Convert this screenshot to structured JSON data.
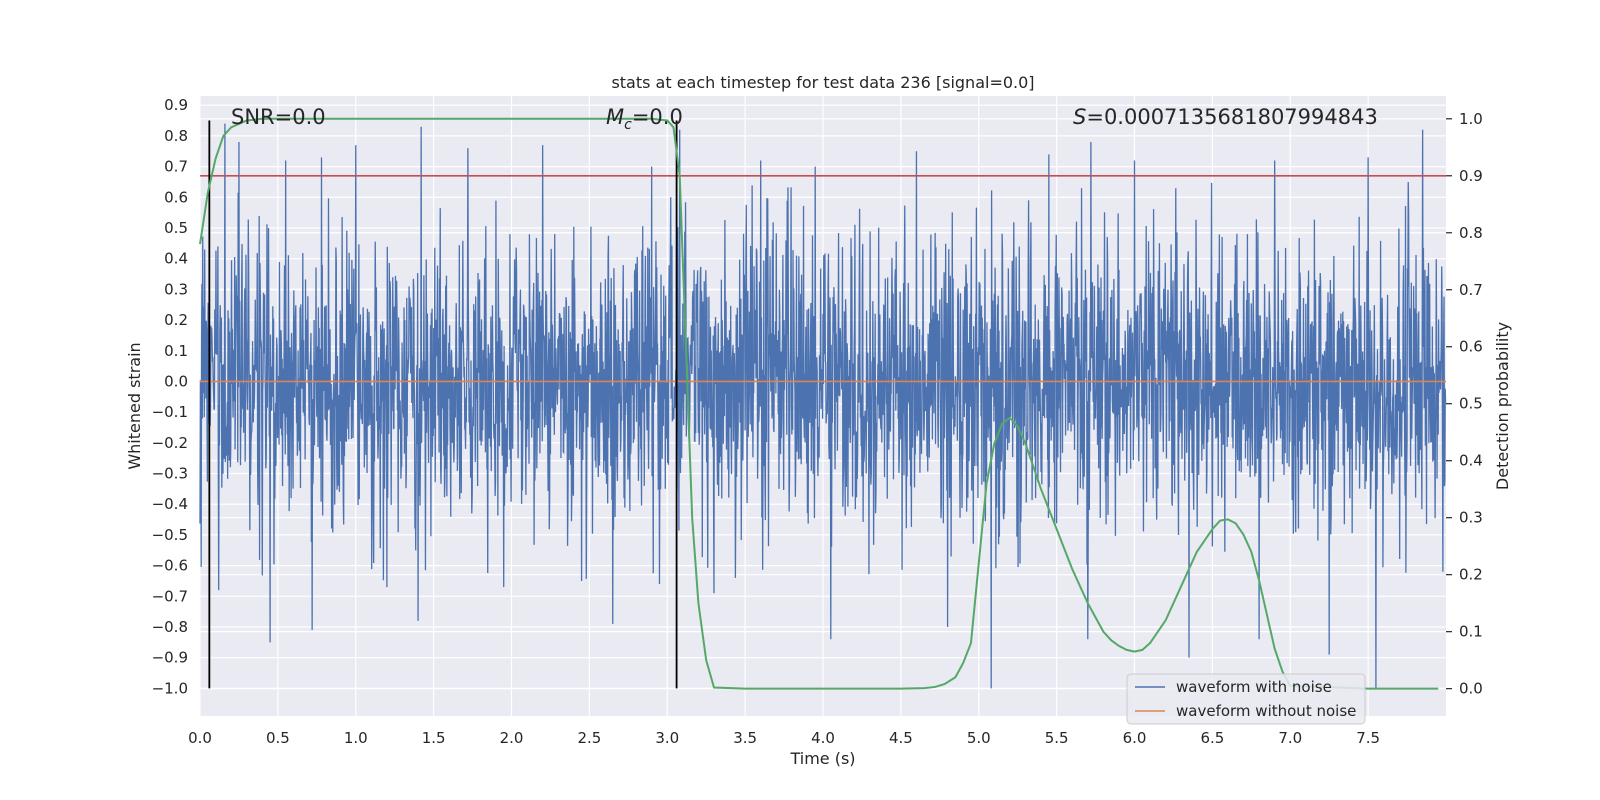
{
  "chart_data": {
    "type": "line",
    "title": "stats at each timestep for test data 236 [signal=0.0]",
    "xlabel": "Time (s)",
    "ylabel": "Whitened strain",
    "y2label": "Detection probability",
    "xlim": [
      0.0,
      8.0
    ],
    "ylim": [
      -1.09,
      0.93
    ],
    "y2lim": [
      -0.048,
      1.04
    ],
    "xticks": [
      0.0,
      0.5,
      1.0,
      1.5,
      2.0,
      2.5,
      3.0,
      3.5,
      4.0,
      4.5,
      5.0,
      5.5,
      6.0,
      6.5,
      7.0,
      7.5
    ],
    "xtick_labels": [
      "0.0",
      "0.5",
      "1.0",
      "1.5",
      "2.0",
      "2.5",
      "3.0",
      "3.5",
      "4.0",
      "4.5",
      "5.0",
      "5.5",
      "6.0",
      "6.5",
      "7.0",
      "7.5"
    ],
    "yticks": [
      0.9,
      0.8,
      0.7,
      0.6,
      0.5,
      0.4,
      0.3,
      0.2,
      0.1,
      0.0,
      -0.1,
      -0.2,
      -0.3,
      -0.4,
      -0.5,
      -0.6,
      -0.7,
      -0.8,
      -0.9,
      -1.0
    ],
    "ytick_labels": [
      "0.9",
      "0.8",
      "0.7",
      "0.6",
      "0.5",
      "0.4",
      "0.3",
      "0.2",
      "0.1",
      "0.0",
      "−0.1",
      "−0.2",
      "−0.3",
      "−0.4",
      "−0.5",
      "−0.6",
      "−0.7",
      "−0.8",
      "−0.9",
      "−1.0"
    ],
    "y2ticks": [
      1.0,
      0.9,
      0.8,
      0.7,
      0.6,
      0.5,
      0.4,
      0.3,
      0.2,
      0.1,
      0.0
    ],
    "y2tick_labels": [
      "1.0",
      "0.9",
      "0.8",
      "0.7",
      "0.6",
      "0.5",
      "0.4",
      "0.3",
      "0.2",
      "0.1",
      "0.0"
    ],
    "annotations": {
      "snr": "SNR=0.0",
      "mc_symbol": "M",
      "mc_sub": "c",
      "mc_value": "=0.0",
      "s_symbol": "S",
      "s_value": "=0.0007135681807994843"
    },
    "vertical_lines_x": [
      0.06,
      3.06
    ],
    "vertical_lines_yrange": [
      -1.0,
      0.85
    ],
    "threshold_y2": 0.9,
    "series": [
      {
        "name": "waveform with noise",
        "color": "#4c72b0",
        "description": "noisy whitened strain, sampled densely across 0–8 s",
        "typical_band": [
          -0.45,
          0.45
        ],
        "spikes": [
          {
            "t": 0.03,
            "v": 0.43
          },
          {
            "t": 0.16,
            "v": 0.84
          },
          {
            "t": 0.12,
            "v": -0.68
          },
          {
            "t": 0.25,
            "v": 0.78
          },
          {
            "t": 0.45,
            "v": -0.85
          },
          {
            "t": 0.55,
            "v": 0.72
          },
          {
            "t": 0.72,
            "v": -0.81
          },
          {
            "t": 0.78,
            "v": 0.73
          },
          {
            "t": 1.0,
            "v": 0.77
          },
          {
            "t": 1.2,
            "v": -0.67
          },
          {
            "t": 1.42,
            "v": 0.83
          },
          {
            "t": 1.4,
            "v": -0.78
          },
          {
            "t": 1.72,
            "v": 0.76
          },
          {
            "t": 1.95,
            "v": -0.67
          },
          {
            "t": 2.2,
            "v": 0.77
          },
          {
            "t": 2.45,
            "v": -0.65
          },
          {
            "t": 2.65,
            "v": -0.79
          },
          {
            "t": 2.9,
            "v": 0.7
          },
          {
            "t": 2.95,
            "v": -0.66
          },
          {
            "t": 3.08,
            "v": 0.82
          },
          {
            "t": 3.3,
            "v": -0.69
          },
          {
            "t": 3.6,
            "v": 0.72
          },
          {
            "t": 3.95,
            "v": 0.7
          },
          {
            "t": 4.05,
            "v": -0.84
          },
          {
            "t": 4.6,
            "v": 0.75
          },
          {
            "t": 4.8,
            "v": -0.8
          },
          {
            "t": 5.08,
            "v": -1.0
          },
          {
            "t": 5.45,
            "v": 0.74
          },
          {
            "t": 5.7,
            "v": -0.84
          },
          {
            "t": 5.72,
            "v": 0.78
          },
          {
            "t": 6.0,
            "v": 0.72
          },
          {
            "t": 6.35,
            "v": -0.9
          },
          {
            "t": 6.8,
            "v": -0.84
          },
          {
            "t": 6.9,
            "v": 0.72
          },
          {
            "t": 7.25,
            "v": -0.89
          },
          {
            "t": 7.5,
            "v": 0.73
          },
          {
            "t": 7.55,
            "v": -1.0
          },
          {
            "t": 7.85,
            "v": 0.82
          },
          {
            "t": 7.98,
            "v": -0.62
          }
        ]
      },
      {
        "name": "waveform without noise",
        "color": "#dd8452",
        "x": [
          0.0,
          8.0
        ],
        "y": [
          0.0,
          0.0
        ]
      },
      {
        "name": "detection probability",
        "color": "#55a868",
        "axis": "right",
        "x": [
          0.0,
          0.05,
          0.1,
          0.15,
          0.2,
          0.3,
          0.4,
          0.6,
          1.0,
          2.0,
          2.9,
          3.0,
          3.04,
          3.08,
          3.12,
          3.16,
          3.2,
          3.25,
          3.3,
          3.5,
          4.0,
          4.5,
          4.65,
          4.72,
          4.78,
          4.85,
          4.9,
          4.95,
          5.0,
          5.05,
          5.1,
          5.15,
          5.2,
          5.25,
          5.3,
          5.4,
          5.5,
          5.6,
          5.7,
          5.8,
          5.85,
          5.9,
          5.95,
          6.0,
          6.05,
          6.1,
          6.15,
          6.2,
          6.3,
          6.4,
          6.5,
          6.55,
          6.6,
          6.65,
          6.7,
          6.75,
          6.8,
          6.85,
          6.9,
          6.95,
          7.0,
          7.5,
          7.95
        ],
        "y": [
          0.78,
          0.87,
          0.93,
          0.97,
          0.985,
          0.997,
          1.0,
          1.0,
          1.0,
          1.0,
          1.0,
          0.997,
          0.985,
          0.9,
          0.6,
          0.3,
          0.15,
          0.05,
          0.002,
          0.0,
          0.0,
          0.0,
          0.001,
          0.003,
          0.008,
          0.02,
          0.045,
          0.08,
          0.22,
          0.36,
          0.43,
          0.465,
          0.475,
          0.46,
          0.43,
          0.35,
          0.28,
          0.21,
          0.15,
          0.1,
          0.085,
          0.075,
          0.068,
          0.065,
          0.068,
          0.08,
          0.1,
          0.12,
          0.18,
          0.24,
          0.28,
          0.295,
          0.297,
          0.29,
          0.27,
          0.24,
          0.19,
          0.13,
          0.07,
          0.03,
          0.005,
          0.0,
          0.0
        ]
      }
    ],
    "legend": {
      "position": "lower-right",
      "entries": [
        {
          "label": "waveform with noise",
          "color": "#4c72b0"
        },
        {
          "label": "waveform without noise",
          "color": "#dd8452"
        }
      ]
    },
    "colors": {
      "plot_background": "#eaeaf2",
      "grid": "#ffffff",
      "threshold": "#c44e52",
      "vertical_line": "#000000"
    },
    "grid": true
  }
}
